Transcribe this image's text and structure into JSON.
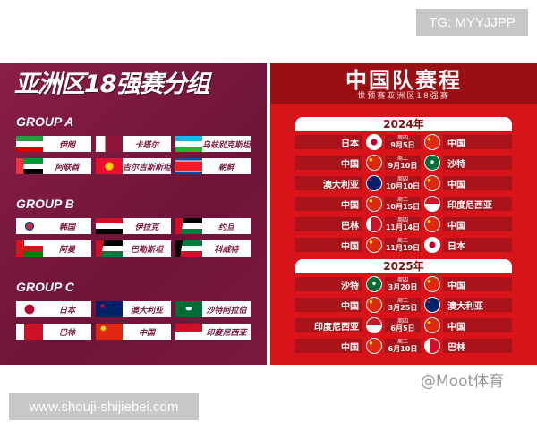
{
  "badges": {
    "tg": "TG: MYYJJPP",
    "site": "www.shouji-shijiebei.com"
  },
  "groups_panel": {
    "title": "亚洲区18强赛分组",
    "groups": [
      {
        "name": "GROUP A",
        "teams": [
          {
            "name": "伊朗",
            "flag": "iran"
          },
          {
            "name": "卡塔尔",
            "flag": "qatar"
          },
          {
            "name": "乌兹别克斯坦",
            "flag": "uzbekistan"
          },
          {
            "name": "阿联酋",
            "flag": "uae"
          },
          {
            "name": "吉尔吉斯斯坦",
            "flag": "kyrgyzstan"
          },
          {
            "name": "朝鲜",
            "flag": "north-korea"
          }
        ]
      },
      {
        "name": "GROUP B",
        "teams": [
          {
            "name": "韩国",
            "flag": "south-korea"
          },
          {
            "name": "伊拉克",
            "flag": "iraq"
          },
          {
            "name": "约旦",
            "flag": "jordan"
          },
          {
            "name": "阿曼",
            "flag": "oman"
          },
          {
            "name": "巴勒斯坦",
            "flag": "palestine"
          },
          {
            "name": "科威特",
            "flag": "kuwait"
          }
        ]
      },
      {
        "name": "GROUP C",
        "teams": [
          {
            "name": "日本",
            "flag": "japan"
          },
          {
            "name": "澳大利亚",
            "flag": "australia"
          },
          {
            "name": "沙特阿拉伯",
            "flag": "saudi"
          },
          {
            "name": "巴林",
            "flag": "bahrain"
          },
          {
            "name": "中国",
            "flag": "china"
          },
          {
            "name": "印度尼西亚",
            "flag": "indonesia"
          }
        ]
      }
    ]
  },
  "schedule_panel": {
    "title": "中国队赛程",
    "subtitle": "世预赛亚洲区18强赛",
    "years": [
      {
        "year": "2024年",
        "matches": [
          {
            "home": "日本",
            "home_flag": "japan",
            "weekday": "周四",
            "date": "9月5日",
            "away": "中国",
            "away_flag": "china"
          },
          {
            "home": "中国",
            "home_flag": "china",
            "weekday": "周二",
            "date": "9月10日",
            "away": "沙特",
            "away_flag": "saudi"
          },
          {
            "home": "澳大利亚",
            "home_flag": "australia",
            "weekday": "周四",
            "date": "10月10日",
            "away": "中国",
            "away_flag": "china"
          },
          {
            "home": "中国",
            "home_flag": "china",
            "weekday": "周二",
            "date": "10月15日",
            "away": "印度尼西亚",
            "away_flag": "indonesia"
          },
          {
            "home": "巴林",
            "home_flag": "bahrain",
            "weekday": "周四",
            "date": "11月14日",
            "away": "中国",
            "away_flag": "china"
          },
          {
            "home": "中国",
            "home_flag": "china",
            "weekday": "周二",
            "date": "11月19日",
            "away": "日本",
            "away_flag": "japan"
          }
        ]
      },
      {
        "year": "2025年",
        "matches": [
          {
            "home": "沙特",
            "home_flag": "saudi",
            "weekday": "周四",
            "date": "3月20日",
            "away": "中国",
            "away_flag": "china"
          },
          {
            "home": "中国",
            "home_flag": "china",
            "weekday": "周二",
            "date": "3月25日",
            "away": "澳大利亚",
            "away_flag": "australia"
          },
          {
            "home": "印度尼西亚",
            "home_flag": "indonesia",
            "weekday": "周四",
            "date": "6月5日",
            "away": "中国",
            "away_flag": "china"
          },
          {
            "home": "中国",
            "home_flag": "china",
            "weekday": "周二",
            "date": "6月10日",
            "away": "巴林",
            "away_flag": "bahrain"
          }
        ]
      }
    ],
    "watermark": "@Moot体育"
  },
  "colors": {
    "groups_bg": "#7a1a3f",
    "schedule_bg": "#d8141a",
    "row_bg": "#a8141a"
  }
}
